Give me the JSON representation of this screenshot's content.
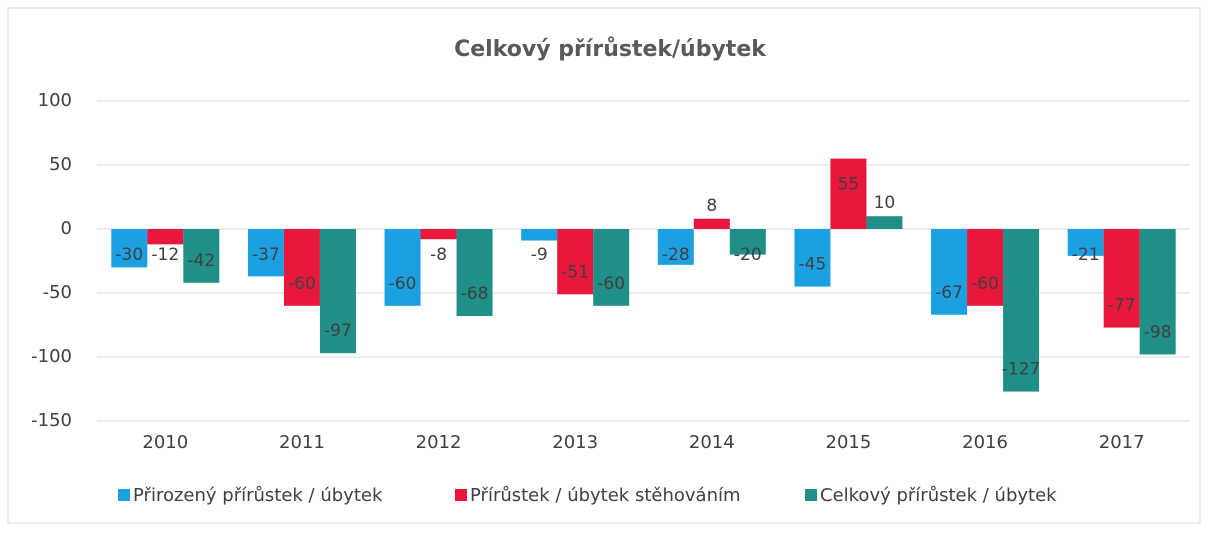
{
  "chart_data": {
    "type": "bar",
    "title": "Celkový přírůstek/úbytek",
    "categories": [
      "2010",
      "2011",
      "2012",
      "2013",
      "2014",
      "2015",
      "2016",
      "2017"
    ],
    "series": [
      {
        "name": "Přirozený přírůstek / úbytek",
        "color": "#1ba1e2",
        "values": [
          -30,
          -37,
          -60,
          -9,
          -28,
          -45,
          -67,
          -21
        ]
      },
      {
        "name": "Přírůstek / úbytek stěhováním",
        "color": "#e8173b",
        "values": [
          -12,
          -60,
          -8,
          -51,
          8,
          55,
          -60,
          -77
        ]
      },
      {
        "name": "Celkový přírůstek / úbytek",
        "color": "#1f8f87",
        "values": [
          -42,
          -97,
          -68,
          -60,
          -20,
          10,
          -127,
          -98
        ]
      }
    ],
    "ylim": [
      -150,
      100
    ],
    "yticks": [
      -150,
      -100,
      -50,
      0,
      50,
      100
    ],
    "grid": true,
    "legend": "bottom"
  }
}
